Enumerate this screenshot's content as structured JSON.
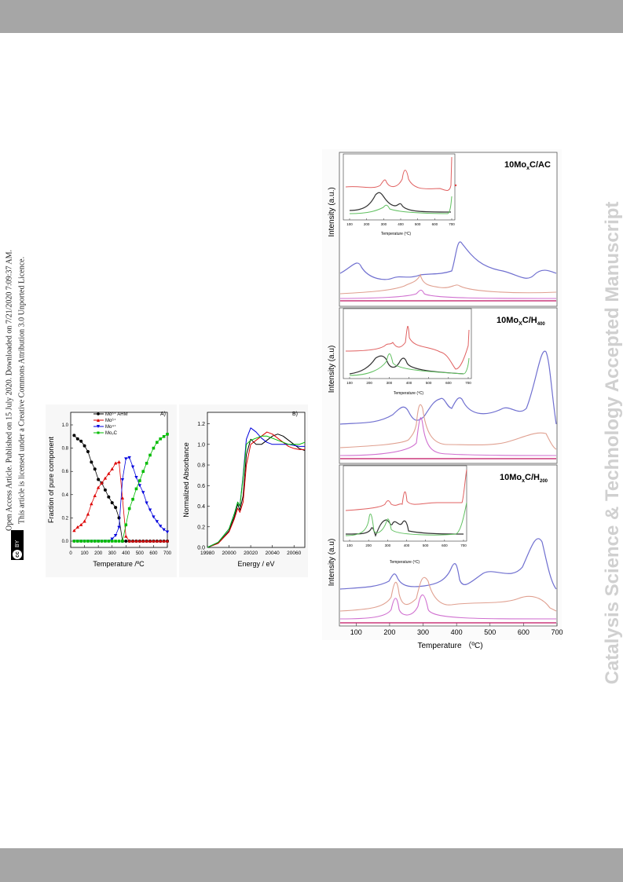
{
  "header": {
    "bar_color": "#a6a6a6"
  },
  "side_title": "Catalysis Science & Technology Accepted Manuscript",
  "licence": {
    "line1": "Open Access Article. Published on 15 July 2020. Downloaded on 7/21/2020 7:09:37 AM.",
    "line2": "This article is licensed under a Creative Commons Attribution 3.0 Unported Licence.",
    "badge_cc": "cc",
    "badge_by": "BY"
  },
  "panelA": {
    "label": "A)",
    "ylabel": "Fraction of pure component",
    "xlabel": "Temperature /ºC",
    "yticks": [
      "0.0",
      "0.2",
      "0.4",
      "0.6",
      "0.8",
      "1.0"
    ],
    "xticks": [
      "0",
      "100",
      "200",
      "300",
      "400",
      "500",
      "600",
      "700"
    ],
    "legend": [
      {
        "text": "Mo⁶⁺ AHM"
      },
      {
        "text": "Mo⁶⁺"
      },
      {
        "text": "Mo⁴⁺"
      },
      {
        "text": "Mo₂C"
      }
    ]
  },
  "panelB": {
    "label": "B)",
    "ylabel": "Normalized Absorbance",
    "xlabel": "Energy / eV",
    "yticks": [
      "0.0",
      "0.2",
      "0.4",
      "0.6",
      "0.8",
      "1.0",
      "1.2"
    ],
    "xticks": [
      "19980",
      "20000",
      "20020",
      "20040",
      "20060"
    ]
  },
  "tpr": {
    "ylabel": "Intensity (a.u.)",
    "ylabel2": "Intensity (a.u)",
    "xlabel": "Temperature （ºC)",
    "xticks": [
      "100",
      "200",
      "300",
      "400",
      "500",
      "600",
      "700"
    ],
    "inset_xlabel": "Temperature (ºC)",
    "inset_xticks": [
      "100",
      "200",
      "300",
      "400",
      "500",
      "600",
      "700"
    ],
    "panels": [
      {
        "title": "10Mo",
        "sub": "x",
        "suffix": "C/AC"
      },
      {
        "title": "10Mo",
        "sub": "X",
        "suffix": "C/H",
        "sub2": "400"
      },
      {
        "title": "10Mo",
        "sub": "x",
        "suffix": "C/H",
        "sub2": "200"
      }
    ]
  },
  "chart_data": [
    {
      "type": "line",
      "title": "",
      "xlabel": "Temperature /ºC",
      "ylabel": "Fraction of pure component",
      "xlim": [
        0,
        700
      ],
      "ylim": [
        0,
        1.0
      ],
      "x": [
        25,
        50,
        75,
        100,
        125,
        150,
        175,
        200,
        225,
        250,
        275,
        300,
        325,
        350,
        375,
        400,
        425,
        450,
        475,
        500,
        525,
        550,
        575,
        600,
        625,
        650,
        675,
        700
      ],
      "series": [
        {
          "name": "Mo⁶⁺ AHM",
          "color": "#000000",
          "values": [
            0.91,
            0.88,
            0.86,
            0.82,
            0.77,
            0.68,
            0.62,
            0.53,
            0.5,
            0.44,
            0.38,
            0.33,
            0.29,
            0.2,
            0.0,
            0.0,
            0.0,
            0.0,
            0.0,
            0.0,
            0.0,
            0.0,
            0.0,
            0.0,
            0.0,
            0.0,
            0.0,
            0.0
          ]
        },
        {
          "name": "Mo⁶⁺",
          "color": "#dd0000",
          "values": [
            0.09,
            0.12,
            0.14,
            0.17,
            0.23,
            0.32,
            0.39,
            0.46,
            0.5,
            0.54,
            0.58,
            0.62,
            0.67,
            0.68,
            0.37,
            0.04,
            0.0,
            0.0,
            0.0,
            0.0,
            0.0,
            0.0,
            0.0,
            0.0,
            0.0,
            0.0,
            0.0,
            0.0
          ]
        },
        {
          "name": "Mo⁴⁺",
          "color": "#0000dd",
          "values": [
            0.0,
            0.0,
            0.0,
            0.0,
            0.0,
            0.0,
            0.0,
            0.0,
            0.0,
            0.0,
            0.0,
            0.02,
            0.05,
            0.12,
            0.53,
            0.71,
            0.72,
            0.64,
            0.55,
            0.48,
            0.42,
            0.33,
            0.27,
            0.21,
            0.17,
            0.13,
            0.1,
            0.08
          ]
        },
        {
          "name": "Mo₂C",
          "color": "#00bb00",
          "values": [
            0.0,
            0.0,
            0.0,
            0.0,
            0.0,
            0.0,
            0.0,
            0.0,
            0.0,
            0.0,
            0.0,
            0.0,
            0.0,
            0.0,
            0.0,
            0.14,
            0.28,
            0.36,
            0.45,
            0.52,
            0.6,
            0.67,
            0.74,
            0.8,
            0.85,
            0.88,
            0.9,
            0.92
          ]
        }
      ]
    },
    {
      "type": "line",
      "title": "",
      "xlabel": "Energy / eV",
      "ylabel": "Normalized Absorbance",
      "xlim": [
        19980,
        20070
      ],
      "ylim": [
        0,
        1.25
      ],
      "x": [
        19980,
        19990,
        20000,
        20005,
        20008,
        20010,
        20013,
        20016,
        20020,
        20025,
        20030,
        20035,
        20040,
        20045,
        20050,
        20055,
        20060,
        20065,
        20070
      ],
      "series": [
        {
          "color": "#000000",
          "values": [
            0.0,
            0.04,
            0.16,
            0.3,
            0.42,
            0.36,
            0.5,
            0.9,
            1.05,
            1.0,
            1.0,
            1.04,
            1.08,
            1.1,
            1.08,
            1.04,
            1.0,
            0.96,
            0.94
          ]
        },
        {
          "color": "#dd0000",
          "values": [
            0.0,
            0.04,
            0.15,
            0.28,
            0.38,
            0.34,
            0.44,
            0.8,
            1.0,
            1.04,
            1.08,
            1.12,
            1.1,
            1.06,
            1.02,
            0.98,
            0.96,
            0.95,
            0.95
          ]
        },
        {
          "color": "#0000dd",
          "values": [
            0.0,
            0.05,
            0.18,
            0.33,
            0.44,
            0.4,
            0.7,
            1.05,
            1.16,
            1.12,
            1.06,
            1.02,
            1.0,
            1.0,
            1.0,
            1.0,
            0.99,
            0.98,
            0.98
          ]
        },
        {
          "color": "#00bb00",
          "values": [
            0.0,
            0.05,
            0.18,
            0.33,
            0.44,
            0.4,
            0.68,
            1.0,
            1.04,
            1.06,
            1.08,
            1.08,
            1.06,
            1.04,
            1.02,
            1.0,
            1.0,
            1.0,
            1.02
          ]
        }
      ]
    }
  ]
}
